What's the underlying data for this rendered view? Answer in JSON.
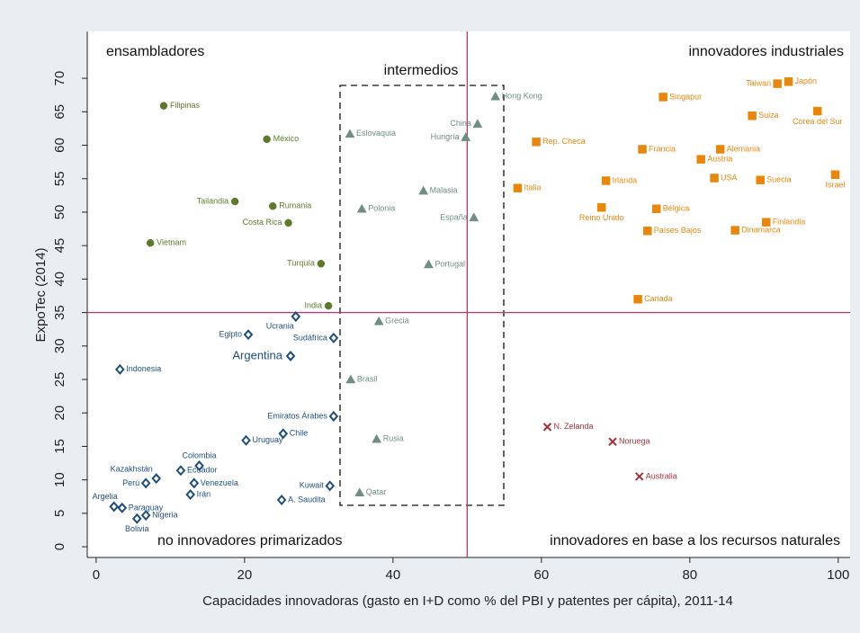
{
  "chart_data": {
    "type": "scatter",
    "x_label": "Capacidades innovadoras (gasto en I+D como % del PBI y patentes per cápita), 2011-14",
    "y_label": "ExpoTec (2014)",
    "xlim": [
      -1.2,
      101.6
    ],
    "ylim": [
      -1.6,
      77.0
    ],
    "xticks": [
      0,
      20,
      40,
      60,
      80,
      100
    ],
    "yticks": [
      0,
      5,
      10,
      15,
      20,
      25,
      30,
      35,
      40,
      45,
      50,
      55,
      60,
      65,
      70
    ],
    "vlines": [
      50
    ],
    "hlines": [
      35
    ],
    "reference_color": "#c2336b",
    "annotations": [
      "ensambladores",
      "intermedios",
      "innovadores industriales",
      "no innovadores primarizados",
      "innovadores en base a los recursos naturales"
    ],
    "series": [
      {
        "color": "#5b7a2b",
        "marker": "circle",
        "labels": [
          "Filipinas",
          "México",
          "Tailandia",
          "Rumania",
          "Costa Rica",
          "Vietnam",
          "Turquía",
          "India"
        ],
        "x": [
          9.1,
          23.0,
          18.7,
          23.8,
          25.9,
          7.3,
          30.3,
          31.3
        ],
        "values": [
          65.9,
          60.9,
          51.6,
          50.9,
          48.4,
          45.4,
          42.3,
          36.0
        ]
      },
      {
        "color": "#1f4e79",
        "marker": "diamond",
        "labels": [
          "Ucrania",
          "Egipto",
          "Sudáfrica",
          "Argentina",
          "Indonesia",
          "Emiratos Árabes",
          "Chile",
          "Uruguay",
          "Colombia",
          "Kazakhstán",
          "Ecuador",
          "Perú",
          "Venezuela",
          "Irán",
          "Kuwait",
          "A. Saudita",
          "Argelia",
          "Paraguay",
          "Nigeria",
          "Bolivia"
        ],
        "x": [
          26.9,
          20.5,
          32.0,
          26.2,
          3.2,
          32.0,
          25.2,
          20.2,
          13.9,
          8.1,
          11.4,
          6.7,
          13.2,
          12.7,
          31.5,
          25.0,
          2.4,
          3.5,
          6.7,
          5.5
        ],
        "values": [
          34.4,
          31.7,
          31.2,
          28.5,
          26.5,
          19.5,
          16.9,
          15.9,
          12.1,
          10.2,
          11.4,
          9.5,
          9.5,
          7.8,
          9.1,
          7.0,
          6.0,
          5.8,
          4.7,
          4.2
        ]
      },
      {
        "color": "#6f8c85",
        "marker": "triangle",
        "labels": [
          "Hong Kong",
          "China",
          "Hungría",
          "Eslovaquia",
          "Malasia",
          "Polonia",
          "España",
          "Portugal",
          "Grecia",
          "Brasil",
          "Rusia",
          "Qatar"
        ],
        "x": [
          53.8,
          51.4,
          49.8,
          34.2,
          44.1,
          35.8,
          50.9,
          44.8,
          38.1,
          34.3,
          37.8,
          35.5
        ],
        "values": [
          67.3,
          63.2,
          61.2,
          61.7,
          53.2,
          50.5,
          49.2,
          42.2,
          33.7,
          25.0,
          16.1,
          8.1
        ]
      },
      {
        "color": "#e8870f",
        "marker": "square",
        "labels": [
          "Taiwan",
          "Japón",
          "Singapur",
          "Suiza",
          "Corea del Sur",
          "Rep. Checa",
          "Francia",
          "Alemania",
          "Austria",
          "USA",
          "Suecia",
          "Israel",
          "Italia",
          "Irlanda",
          "Reino Unido",
          "Bélgica",
          "Países Bajos",
          "Dinamarca",
          "Finlandia",
          "Canada"
        ],
        "x": [
          91.8,
          93.3,
          76.4,
          88.4,
          97.2,
          59.3,
          73.6,
          84.1,
          81.5,
          83.3,
          89.5,
          99.6,
          56.8,
          68.7,
          68.1,
          75.5,
          74.3,
          86.1,
          90.3,
          73.0
        ],
        "values": [
          69.2,
          69.5,
          67.2,
          64.4,
          65.1,
          60.5,
          59.4,
          59.4,
          57.9,
          55.1,
          54.8,
          55.6,
          53.6,
          54.7,
          50.7,
          50.5,
          47.2,
          47.3,
          48.5,
          37.0
        ]
      },
      {
        "color": "#a3323c",
        "marker": "x",
        "labels": [
          "N. Zelanda",
          "Noruega",
          "Australia"
        ],
        "x": [
          60.8,
          69.6,
          73.2
        ],
        "values": [
          17.9,
          15.7,
          10.5
        ]
      }
    ]
  }
}
